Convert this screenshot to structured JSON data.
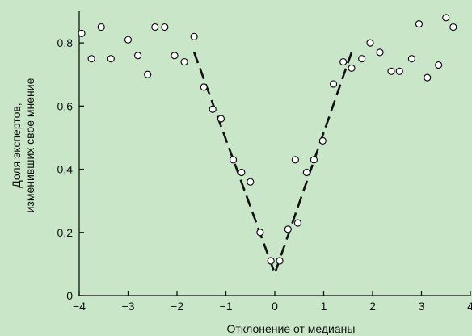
{
  "chart_data": {
    "type": "scatter",
    "title": "",
    "xlabel": "Отклонение от медианы",
    "ylabel_lines": [
      "Доля экспертов,",
      "изменивших свое мнение"
    ],
    "xlim": [
      -4,
      4
    ],
    "ylim": [
      0,
      0.9
    ],
    "xticks": [
      -4,
      -3,
      -2,
      -1,
      0,
      1,
      2,
      3,
      4
    ],
    "xtick_labels": [
      "−4",
      "−3",
      "−2",
      "−1",
      "0",
      "1",
      "2",
      "3",
      "4"
    ],
    "yticks": [
      0,
      0.2,
      0.4,
      0.6,
      0.8
    ],
    "ytick_labels": [
      "0",
      "0,2",
      "0,4",
      "0,6",
      "0,8"
    ],
    "grid": false,
    "legend": "none",
    "colors": {
      "background": "#c9e6c9",
      "ink": "#111111",
      "marker_fill": "#ffffff"
    },
    "points": [
      {
        "x": -3.95,
        "y": 0.83
      },
      {
        "x": -3.75,
        "y": 0.75
      },
      {
        "x": -3.55,
        "y": 0.85
      },
      {
        "x": -3.35,
        "y": 0.75
      },
      {
        "x": -3.0,
        "y": 0.81
      },
      {
        "x": -2.8,
        "y": 0.76
      },
      {
        "x": -2.6,
        "y": 0.7
      },
      {
        "x": -2.45,
        "y": 0.85
      },
      {
        "x": -2.25,
        "y": 0.85
      },
      {
        "x": -2.05,
        "y": 0.76
      },
      {
        "x": -1.85,
        "y": 0.74
      },
      {
        "x": -1.65,
        "y": 0.82
      },
      {
        "x": -1.45,
        "y": 0.66
      },
      {
        "x": -1.27,
        "y": 0.59
      },
      {
        "x": -1.1,
        "y": 0.56
      },
      {
        "x": -0.85,
        "y": 0.43
      },
      {
        "x": -0.68,
        "y": 0.39
      },
      {
        "x": -0.5,
        "y": 0.36
      },
      {
        "x": -0.3,
        "y": 0.2
      },
      {
        "x": -0.08,
        "y": 0.11
      },
      {
        "x": 0.1,
        "y": 0.11
      },
      {
        "x": 0.27,
        "y": 0.21
      },
      {
        "x": 0.42,
        "y": 0.43
      },
      {
        "x": 0.47,
        "y": 0.23
      },
      {
        "x": 0.65,
        "y": 0.39
      },
      {
        "x": 0.8,
        "y": 0.43
      },
      {
        "x": 0.98,
        "y": 0.49
      },
      {
        "x": 1.2,
        "y": 0.67
      },
      {
        "x": 1.4,
        "y": 0.74
      },
      {
        "x": 1.57,
        "y": 0.72
      },
      {
        "x": 1.78,
        "y": 0.75
      },
      {
        "x": 1.95,
        "y": 0.8
      },
      {
        "x": 2.15,
        "y": 0.77
      },
      {
        "x": 2.38,
        "y": 0.71
      },
      {
        "x": 2.55,
        "y": 0.71
      },
      {
        "x": 2.8,
        "y": 0.75
      },
      {
        "x": 2.95,
        "y": 0.86
      },
      {
        "x": 3.12,
        "y": 0.69
      },
      {
        "x": 3.35,
        "y": 0.73
      },
      {
        "x": 3.5,
        "y": 0.88
      },
      {
        "x": 3.65,
        "y": 0.85
      }
    ],
    "trend_line": {
      "style": "dashed",
      "points": [
        {
          "x": -1.65,
          "y": 0.77
        },
        {
          "x": 0.0,
          "y": 0.07
        },
        {
          "x": 1.57,
          "y": 0.77
        }
      ]
    }
  }
}
